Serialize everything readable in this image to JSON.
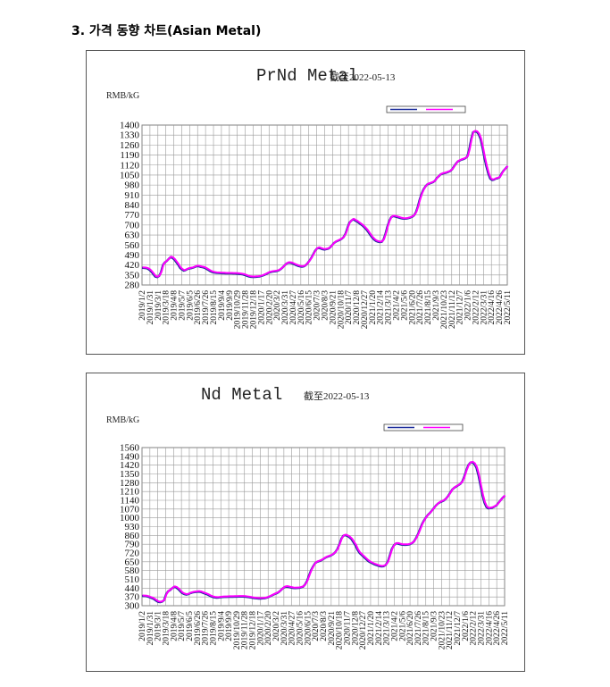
{
  "heading": "3. 가격 동향 차트(Asian Metal)",
  "chart_data": [
    {
      "type": "line",
      "title": "PrNd Metal",
      "subtitle": "截至2022-05-13",
      "ylabel": "RMB/kG",
      "xlabel": "",
      "ylim": [
        280,
        1400
      ],
      "yticks": [
        280,
        350,
        420,
        490,
        560,
        630,
        700,
        770,
        840,
        910,
        980,
        1050,
        1120,
        1190,
        1260,
        1330,
        1400
      ],
      "grid": true,
      "legend": {
        "placement": "top-right",
        "entries": [
          "",
          ""
        ]
      },
      "series_colors": [
        "#1a2a9a",
        "#ff00ff"
      ],
      "xticks": [
        "2019/1/2",
        "2019/1/31",
        "2019/3/1",
        "2019/3/18",
        "2019/4/8",
        "2019/5/7",
        "2019/6/5",
        "2019/6/26",
        "2019/7/26",
        "2019/8/15",
        "2019/9/4",
        "2019/9/9",
        "2019/10/29",
        "2019/11/28",
        "2019/12/18",
        "2020/1/17",
        "2020/2/20",
        "2020/3/2",
        "2020/3/31",
        "2020/4/27",
        "2020/5/16",
        "2020/6/15",
        "2020/7/3",
        "2020/8/3",
        "2020/9/21",
        "2020/10/18",
        "2020/11/7",
        "2020/12/8",
        "2020/12/27",
        "2021/1/20",
        "2021/2/14",
        "2021/3/13",
        "2021/4/2",
        "2021/5/6",
        "2021/6/20",
        "2021/7/26",
        "2021/8/15",
        "2021/9/3",
        "2021/10/23",
        "2021/11/12",
        "2021/12/7",
        "2022/1/6",
        "2022/2/12",
        "2022/3/31",
        "2022/4/16",
        "2022/4/26",
        "2022/5/11"
      ],
      "values": [
        400,
        399,
        398,
        394,
        385,
        372,
        355,
        338,
        335,
        343,
        370,
        420,
        438,
        448,
        462,
        475,
        470,
        458,
        440,
        422,
        400,
        388,
        380,
        385,
        392,
        396,
        398,
        402,
        408,
        412,
        410,
        406,
        404,
        400,
        392,
        384,
        376,
        370,
        367,
        365,
        364,
        363,
        362,
        362,
        361,
        361,
        361,
        361,
        360,
        360,
        359,
        358,
        356,
        354,
        350,
        345,
        340,
        337,
        336,
        336,
        337,
        338,
        340,
        344,
        349,
        355,
        362,
        368,
        372,
        374,
        376,
        378,
        383,
        392,
        404,
        418,
        430,
        436,
        435,
        431,
        425,
        419,
        414,
        410,
        408,
        410,
        418,
        432,
        450,
        470,
        495,
        520,
        536,
        540,
        535,
        530,
        528,
        531,
        535,
        545,
        560,
        575,
        584,
        590,
        596,
        604,
        616,
        640,
        680,
        716,
        730,
        740,
        732,
        725,
        715,
        705,
        695,
        682,
        668,
        650,
        630,
        612,
        598,
        588,
        583,
        580,
        582,
        600,
        640,
        690,
        730,
        755,
        762,
        760,
        756,
        752,
        748,
        745,
        744,
        745,
        748,
        752,
        758,
        768,
        790,
        830,
        880,
        920,
        950,
        970,
        985,
        990,
        995,
        1000,
        1010,
        1030,
        1042,
        1055,
        1060,
        1063,
        1067,
        1072,
        1078,
        1090,
        1110,
        1130,
        1145,
        1152,
        1158,
        1162,
        1168,
        1180,
        1230,
        1300,
        1350,
        1356,
        1352,
        1335,
        1300,
        1240,
        1170,
        1110,
        1060,
        1025,
        1015,
        1018,
        1025,
        1028,
        1035,
        1060,
        1080,
        1095,
        1110
      ]
    },
    {
      "type": "line",
      "title": "Nd Metal",
      "subtitle": "截至2022-05-13",
      "ylabel": "RMB/kG",
      "xlabel": "",
      "ylim": [
        300,
        1560
      ],
      "yticks": [
        300,
        370,
        440,
        510,
        580,
        650,
        720,
        790,
        860,
        930,
        1000,
        1070,
        1140,
        1210,
        1280,
        1350,
        1420,
        1490,
        1560
      ],
      "grid": true,
      "legend": {
        "placement": "top-right",
        "entries": [
          "",
          ""
        ]
      },
      "series_colors": [
        "#1a2a9a",
        "#ff00ff"
      ],
      "xticks": [
        "2019/1/2",
        "2019/1/31",
        "2019/3/1",
        "2019/3/18",
        "2019/4/8",
        "2019/5/7",
        "2019/6/5",
        "2019/6/26",
        "2019/7/26",
        "2019/8/15",
        "2019/9/4",
        "2019/9/9",
        "2019/10/29",
        "2019/11/28",
        "2019/12/18",
        "2020/1/17",
        "2020/2/20",
        "2020/3/2",
        "2020/3/31",
        "2020/4/27",
        "2020/5/16",
        "2020/6/15",
        "2020/7/3",
        "2020/8/3",
        "2020/9/21",
        "2020/10/18",
        "2020/11/7",
        "2020/12/8",
        "2020/12/27",
        "2021/1/20",
        "2021/2/14",
        "2021/3/13",
        "2021/4/2",
        "2021/5/6",
        "2021/6/20",
        "2021/7/26",
        "2021/8/15",
        "2021/9/3",
        "2021/10/23",
        "2021/11/12",
        "2021/12/7",
        "2022/1/6",
        "2022/2/12",
        "2022/3/31",
        "2022/4/16",
        "2022/4/26",
        "2022/5/11"
      ],
      "values": [
        378,
        377,
        376,
        372,
        366,
        360,
        352,
        340,
        330,
        328,
        332,
        345,
        392,
        415,
        425,
        440,
        450,
        445,
        432,
        415,
        400,
        392,
        388,
        392,
        400,
        405,
        408,
        410,
        412,
        410,
        404,
        398,
        392,
        385,
        376,
        370,
        366,
        364,
        365,
        367,
        369,
        370,
        370,
        371,
        371,
        371,
        372,
        372,
        373,
        373,
        373,
        372,
        370,
        368,
        365,
        362,
        360,
        358,
        357,
        357,
        358,
        360,
        364,
        370,
        378,
        386,
        394,
        400,
        410,
        425,
        440,
        450,
        452,
        448,
        444,
        441,
        440,
        441,
        442,
        446,
        452,
        470,
        500,
        545,
        585,
        615,
        640,
        650,
        655,
        662,
        672,
        682,
        690,
        695,
        702,
        712,
        728,
        752,
        790,
        835,
        858,
        862,
        855,
        845,
        830,
        805,
        780,
        745,
        720,
        705,
        690,
        675,
        660,
        648,
        640,
        632,
        626,
        620,
        615,
        613,
        615,
        625,
        650,
        700,
        752,
        780,
        795,
        795,
        790,
        786,
        785,
        785,
        786,
        790,
        798,
        812,
        838,
        870,
        910,
        950,
        980,
        1005,
        1025,
        1040,
        1060,
        1080,
        1100,
        1115,
        1125,
        1132,
        1140,
        1155,
        1175,
        1200,
        1225,
        1240,
        1250,
        1260,
        1270,
        1290,
        1330,
        1380,
        1420,
        1440,
        1442,
        1430,
        1400,
        1340,
        1260,
        1180,
        1120,
        1085,
        1075,
        1078,
        1082,
        1090,
        1100,
        1120,
        1140,
        1160,
        1175
      ]
    }
  ]
}
